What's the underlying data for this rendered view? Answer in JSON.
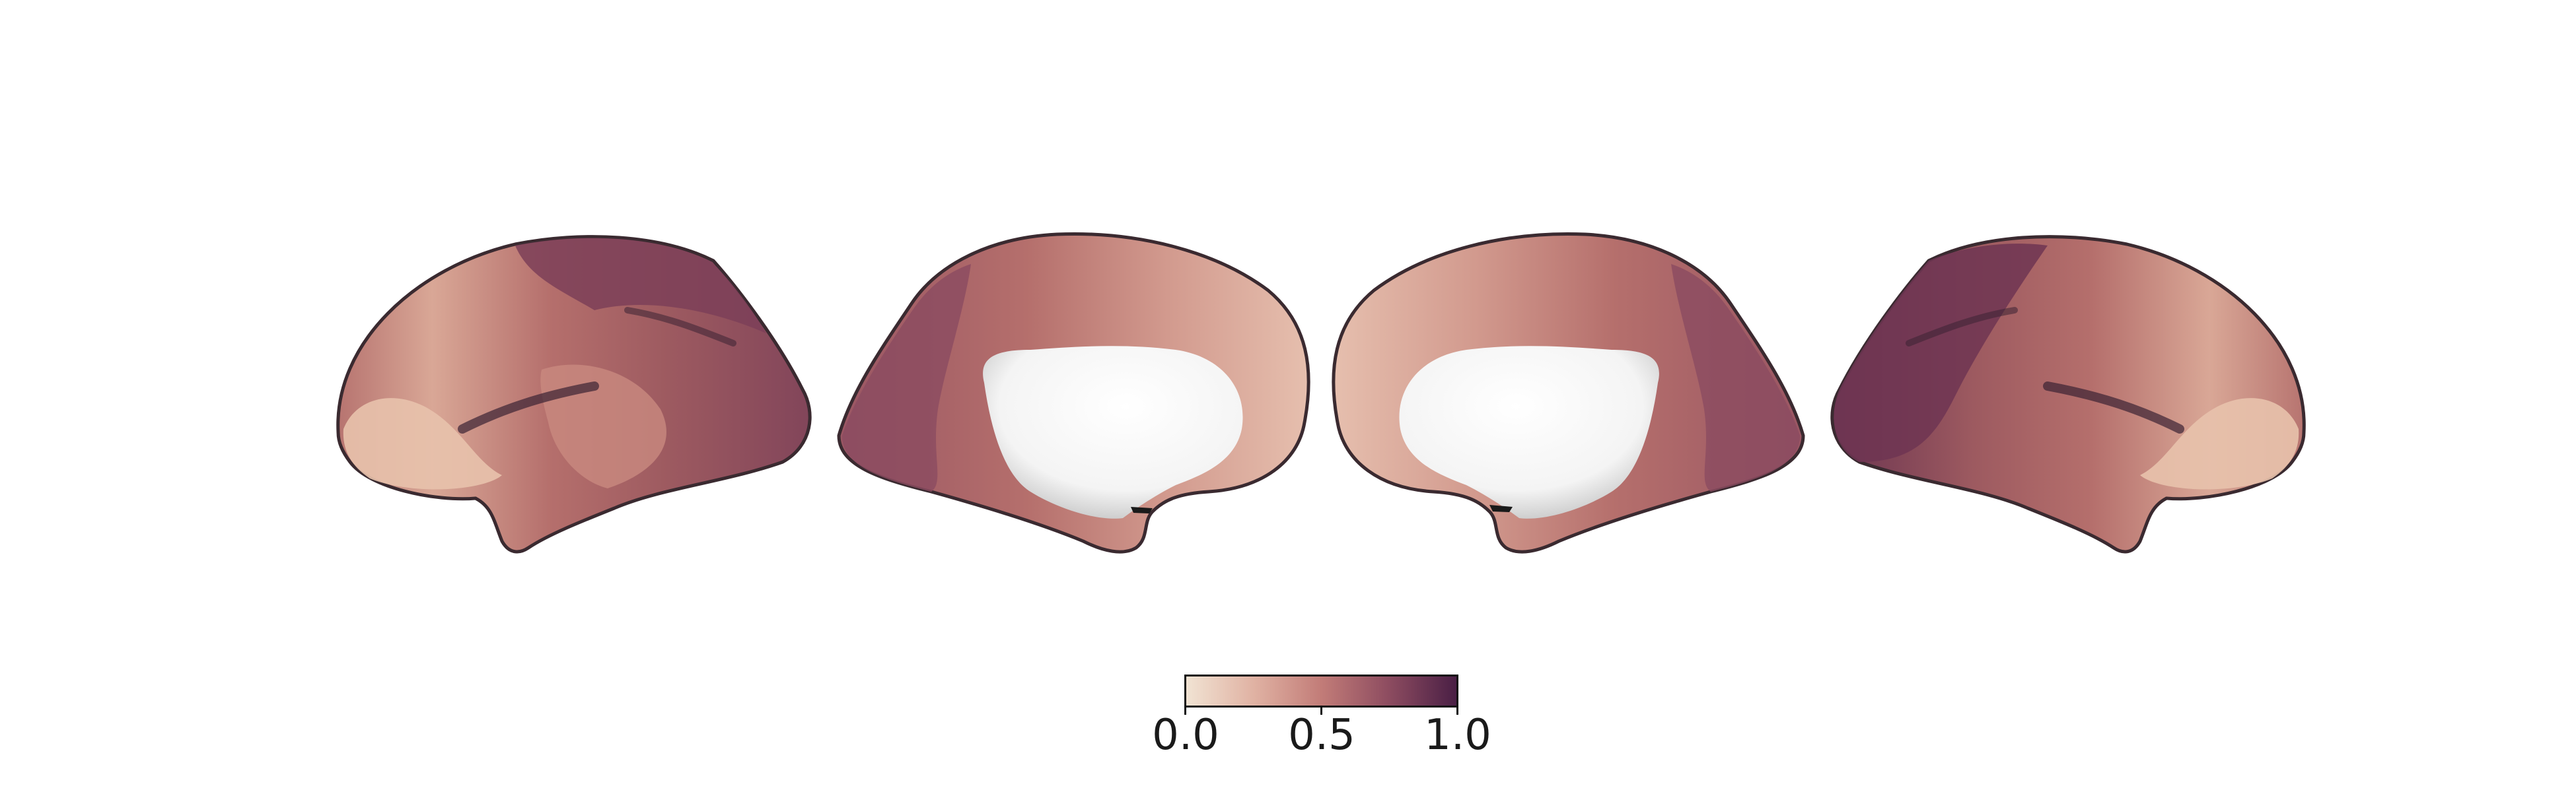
{
  "figure": {
    "views": [
      {
        "name": "left-hemisphere-lateral"
      },
      {
        "name": "left-hemisphere-medial"
      },
      {
        "name": "right-hemisphere-medial"
      },
      {
        "name": "right-hemisphere-lateral"
      }
    ]
  },
  "colorbar": {
    "min": 0.0,
    "max": 1.0,
    "ticks": [
      "0.0",
      "0.5",
      "1.0"
    ],
    "tick_values": [
      0.0,
      0.5,
      1.0
    ],
    "colors": {
      "low": "#f1e3d3",
      "mid": "#c27c78",
      "high": "#4a1f45"
    }
  },
  "colors": {
    "background": "#ffffff",
    "outline": "#3a2a30",
    "medial_wall": "#ffffff",
    "shadow": "#8c8c8c"
  }
}
